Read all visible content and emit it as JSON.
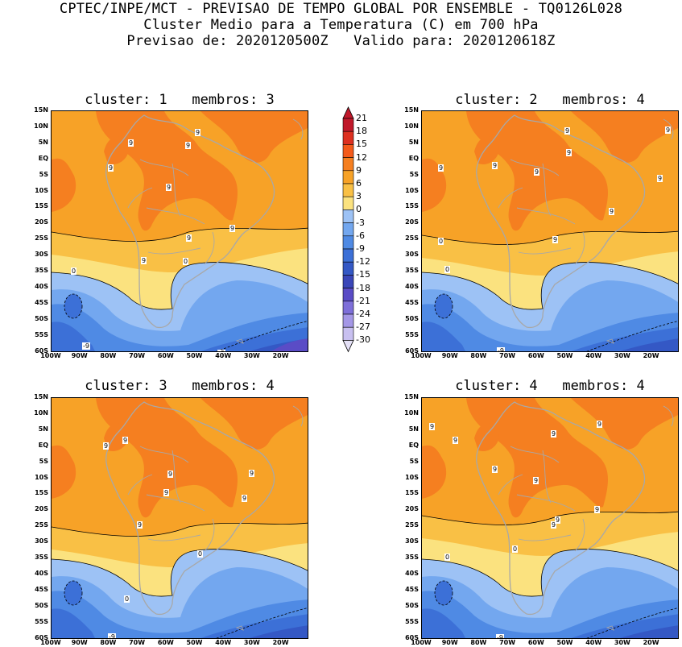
{
  "header": {
    "line1": "CPTEC/INPE/MCT - PREVISAO DE TEMPO GLOBAL POR ENSEMBLE - TQ0126L028",
    "line2": "Cluster Medio para a Temperatura (C) em 700 hPa",
    "line3": "Previsao de: 2020120500Z   Valido para: 2020120618Z"
  },
  "axes": {
    "y_ticks": [
      "15N",
      "10N",
      "5N",
      "EQ",
      "5S",
      "10S",
      "15S",
      "20S",
      "25S",
      "30S",
      "35S",
      "40S",
      "45S",
      "50S",
      "55S",
      "60S"
    ],
    "x_ticks": [
      "100W",
      "90W",
      "80W",
      "70W",
      "60W",
      "50W",
      "40W",
      "30W",
      "20W"
    ]
  },
  "colorbar": {
    "labels": [
      "21",
      "18",
      "15",
      "12",
      "9",
      "6",
      "3",
      "0",
      "-3",
      "-6",
      "-9",
      "-12",
      "-15",
      "-18",
      "-21",
      "-24",
      "-27",
      "-30"
    ],
    "colors": [
      "#c0182a",
      "#dd3020",
      "#f45a1a",
      "#f57f20",
      "#f7a227",
      "#f9c045",
      "#fbe27f",
      "#9dc2f5",
      "#73a7ef",
      "#4f8ae4",
      "#3c70d7",
      "#3458c5",
      "#3a46b8",
      "#5a4cc6",
      "#7e6fd9",
      "#a497e6",
      "#c8c0f0",
      "#e4e0f6"
    ]
  },
  "clusters": [
    {
      "title": "cluster: 1   membros: 3",
      "labels": [
        {
          "t": "9",
          "c": "plus"
        },
        {
          "t": "9",
          "c": "plus"
        },
        {
          "t": "9",
          "c": "plus"
        },
        {
          "t": "9",
          "c": "plus"
        },
        {
          "t": "9",
          "c": "plus"
        },
        {
          "t": "9",
          "c": "plus"
        },
        {
          "t": "9",
          "c": "plus"
        },
        {
          "t": "9",
          "c": "plus"
        },
        {
          "t": "0",
          "c": "zero"
        },
        {
          "t": "0",
          "c": "zero"
        },
        {
          "t": "-9",
          "c": "minus"
        },
        {
          "t": "-9",
          "c": "minus"
        }
      ]
    },
    {
      "title": "cluster: 2   membros: 4",
      "labels": [
        {
          "t": "9",
          "c": "plus"
        },
        {
          "t": "9",
          "c": "plus"
        },
        {
          "t": "9",
          "c": "plus"
        },
        {
          "t": "9",
          "c": "plus"
        },
        {
          "t": "9",
          "c": "plus"
        },
        {
          "t": "9",
          "c": "plus"
        },
        {
          "t": "9",
          "c": "plus"
        },
        {
          "t": "9",
          "c": "plus"
        },
        {
          "t": "9",
          "c": "plus"
        },
        {
          "t": "0",
          "c": "zero"
        },
        {
          "t": "0",
          "c": "zero"
        },
        {
          "t": "-9",
          "c": "minus"
        }
      ]
    },
    {
      "title": "cluster: 3   membros: 4",
      "labels": [
        {
          "t": "9",
          "c": "plus"
        },
        {
          "t": "9",
          "c": "plus"
        },
        {
          "t": "9",
          "c": "plus"
        },
        {
          "t": "9",
          "c": "plus"
        },
        {
          "t": "9",
          "c": "plus"
        },
        {
          "t": "9",
          "c": "plus"
        },
        {
          "t": "9",
          "c": "plus"
        },
        {
          "t": "0",
          "c": "zero"
        },
        {
          "t": "0",
          "c": "zero"
        },
        {
          "t": "-9",
          "c": "minus"
        }
      ]
    },
    {
      "title": "cluster: 4   membros: 4",
      "labels": [
        {
          "t": "9",
          "c": "plus"
        },
        {
          "t": "9",
          "c": "plus"
        },
        {
          "t": "9",
          "c": "plus"
        },
        {
          "t": "9",
          "c": "plus"
        },
        {
          "t": "9",
          "c": "plus"
        },
        {
          "t": "9",
          "c": "plus"
        },
        {
          "t": "9",
          "c": "plus"
        },
        {
          "t": "9",
          "c": "plus"
        },
        {
          "t": "9",
          "c": "plus"
        },
        {
          "t": "0",
          "c": "zero"
        },
        {
          "t": "0",
          "c": "zero"
        },
        {
          "t": "-9",
          "c": "minus"
        }
      ]
    }
  ]
}
